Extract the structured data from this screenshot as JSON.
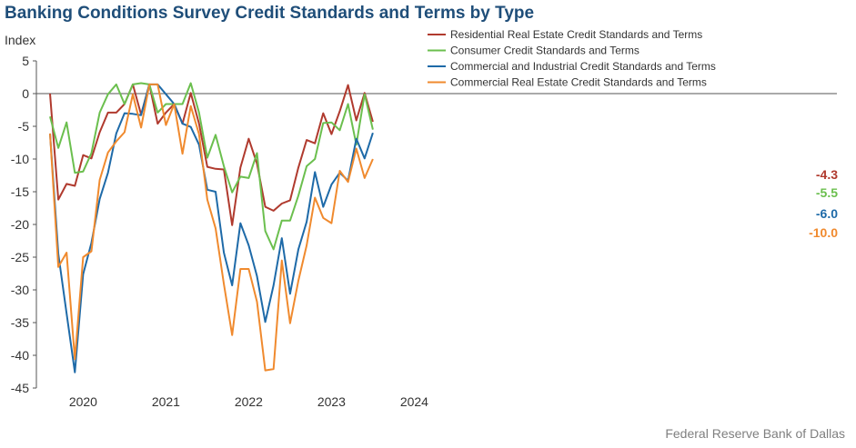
{
  "title": "Banking Conditions Survey Credit Standards and Terms by Type",
  "source": "Federal Reserve Bank of Dallas",
  "chart_data": {
    "type": "line",
    "ylabel": "Index",
    "ylim": [
      -45,
      5
    ],
    "yticks": [
      5,
      0,
      -5,
      -10,
      -15,
      -20,
      -25,
      -30,
      -35,
      -40,
      -45
    ],
    "xlim": [
      0,
      48
    ],
    "xticks": [
      {
        "label": "2020",
        "pos": 4
      },
      {
        "label": "2021",
        "pos": 14
      },
      {
        "label": "2022",
        "pos": 24
      },
      {
        "label": "2023",
        "pos": 34
      },
      {
        "label": "2024",
        "pos": 44
      }
    ],
    "legend_position": "top-right",
    "series": [
      {
        "name": "Residential Real Estate Credit Standards and Terms",
        "color": "#b03a2e",
        "end_label": "-4.3",
        "values": [
          0,
          -16.2,
          -13.8,
          -14.1,
          -9.4,
          -9.9,
          -5.9,
          -2.9,
          -2.9,
          -1.6,
          1.4,
          -3.2,
          1.4,
          -4.6,
          -2.9,
          -1.6,
          -4.6,
          0.1,
          -4.6,
          -11.2,
          -11.5,
          -11.6,
          -20.1,
          -11.3,
          -6.9,
          -10.7,
          -17.3,
          -17.9,
          -16.8,
          -16.3,
          -11.3,
          -7.1,
          -7.6,
          -3.0,
          -6.2,
          -2.7,
          1.3,
          -4.1,
          0.1,
          -4.3
        ]
      },
      {
        "name": "Consumer Credit Standards and Terms",
        "color": "#6bbf4e",
        "end_label": "-5.5",
        "values": [
          -3.5,
          -8.3,
          -4.4,
          -12.1,
          -11.9,
          -9.1,
          -2.9,
          -0.1,
          1.4,
          -1.6,
          1.4,
          1.6,
          1.4,
          -2.9,
          -1.6,
          -1.6,
          -1.6,
          1.6,
          -2.9,
          -9.8,
          -6.3,
          -11.1,
          -15.1,
          -12.7,
          -12.9,
          -9.1,
          -21.0,
          -23.8,
          -19.4,
          -19.4,
          -15.6,
          -11.1,
          -10.0,
          -4.5,
          -4.4,
          -5.6,
          -1.6,
          -7.8,
          -0.1,
          -5.5
        ]
      },
      {
        "name": "Commercial and Industrial Credit Standards and Terms",
        "color": "#1e6aa8",
        "end_label": "-6.0",
        "values": [
          -6.1,
          -24.5,
          -33.6,
          -42.6,
          -27.6,
          -22.8,
          -16.1,
          -12.1,
          -6.1,
          -3.0,
          -3.1,
          -3.3,
          1.4,
          1.4,
          -0.1,
          -1.6,
          -4.6,
          -5.1,
          -7.8,
          -14.7,
          -15.0,
          -24.3,
          -29.3,
          -19.8,
          -23.2,
          -27.9,
          -34.9,
          -29.3,
          -22.1,
          -30.6,
          -23.8,
          -19.6,
          -12.0,
          -17.3,
          -13.9,
          -12.1,
          -13.3,
          -6.9,
          -9.9,
          -6.0
        ]
      },
      {
        "name": "Commercial Real Estate Credit Standards and Terms",
        "color": "#f08a2e",
        "end_label": "-10.0",
        "values": [
          -6.1,
          -26.5,
          -24.3,
          -40.6,
          -25.0,
          -24.1,
          -13.2,
          -9.0,
          -7.3,
          -5.9,
          -0.1,
          -5.2,
          1.4,
          1.4,
          -4.8,
          -1.6,
          -9.2,
          -1.9,
          -6.2,
          -16.2,
          -20.6,
          -29.1,
          -36.9,
          -26.8,
          -26.8,
          -31.8,
          -42.3,
          -42.1,
          -25.5,
          -35.1,
          -28.6,
          -23.2,
          -15.9,
          -19.0,
          -19.8,
          -11.8,
          -13.5,
          -8.4,
          -12.9,
          -10.0
        ]
      }
    ]
  }
}
